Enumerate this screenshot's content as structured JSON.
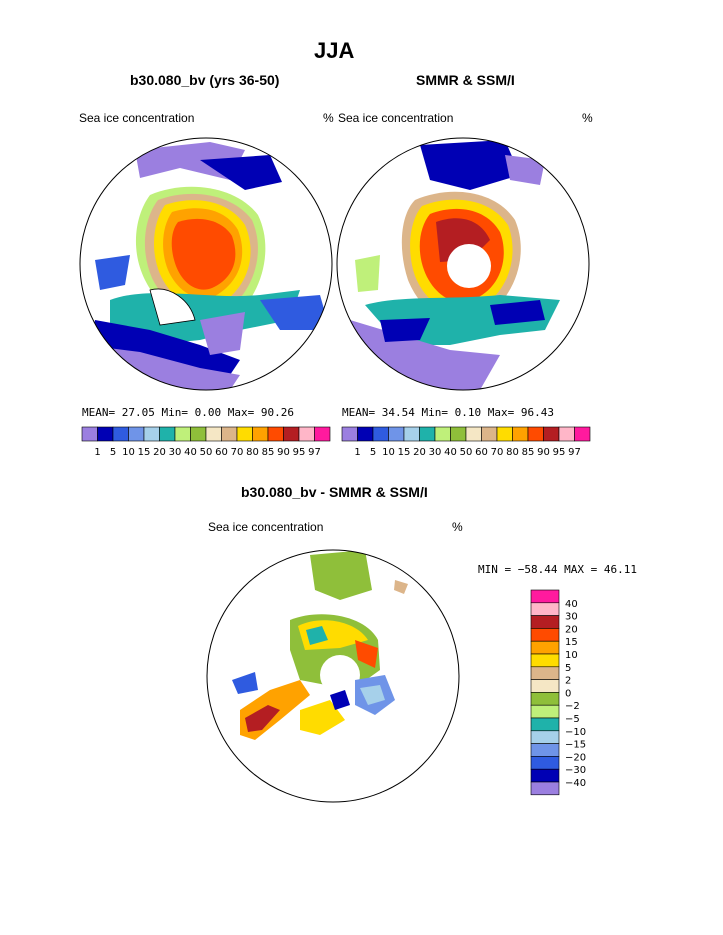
{
  "page_title": "JJA",
  "panels": {
    "model": {
      "subtitle": "b30.080_bv (yrs 36-50)",
      "variable": "Sea ice concentration",
      "units": "%",
      "stats": {
        "mean_label": "MEAN=",
        "mean": "27.05",
        "min_label": "Min=",
        "min": "0.00",
        "max_label": "Max=",
        "max": "90.26"
      }
    },
    "obs": {
      "subtitle": "SMMR & SSM/I",
      "variable": "Sea ice concentration",
      "units": "%",
      "stats": {
        "mean_label": "MEAN=",
        "mean": "34.54",
        "min_label": "Min=",
        "min": "0.10",
        "max_label": "Max=",
        "max": "96.43"
      }
    },
    "diff": {
      "subtitle": "b30.080_bv - SMMR & SSM/I",
      "variable": "Sea ice concentration",
      "units": "%",
      "minmax": "MIN = −58.44 MAX =   46.11"
    }
  },
  "colorbar_conc": {
    "labels": [
      "1",
      "5",
      "10",
      "15",
      "20",
      "30",
      "40",
      "50",
      "60",
      "70",
      "80",
      "85",
      "90",
      "95",
      "97"
    ],
    "colors": [
      "#9b7fe0",
      "#0000b4",
      "#2f5be0",
      "#6f94e8",
      "#a6d0ea",
      "#1fb2aa",
      "#bff07a",
      "#8fbf3a",
      "#f5e7c5",
      "#dcb58a",
      "#ffdc00",
      "#ffa200",
      "#ff4b00",
      "#b41e22",
      "#ffb6c8",
      "#ff1a9e"
    ]
  },
  "colorbar_diff": {
    "labels": [
      "40",
      "30",
      "20",
      "15",
      "10",
      "5",
      "2",
      "0",
      "−2",
      "−5",
      "−10",
      "−15",
      "−20",
      "−30",
      "−40"
    ],
    "colors": [
      "#ff1a9e",
      "#ffb6c8",
      "#b41e22",
      "#ff4b00",
      "#ffa200",
      "#ffdc00",
      "#dcb58a",
      "#f5e7c5",
      "#8fbf3a",
      "#bff07a",
      "#1fb2aa",
      "#a6d0ea",
      "#6f94e8",
      "#2f5be0",
      "#0000b4",
      "#9b7fe0"
    ]
  }
}
